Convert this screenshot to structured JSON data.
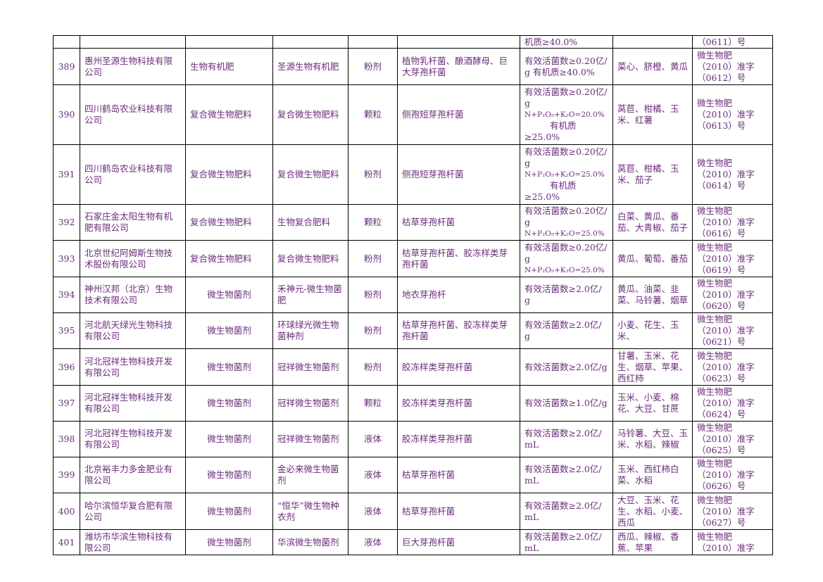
{
  "table": {
    "partial_row": {
      "indicator": "机质≥40.0%",
      "reg_no": "（0611）号"
    },
    "rows": [
      {
        "no": "389",
        "company": "惠州圣源生物科技有限公司",
        "type": "生物有机肥",
        "product": "圣源生物有机肥",
        "form": "粉剂",
        "strain": "植物乳杆菌、酿酒酵母、巨大芽孢杆菌",
        "indicator": [
          "有效活菌数≥0.20亿/g 有机质≥40.0%"
        ],
        "crops": "菜心、脐橙、黄瓜",
        "reg": [
          "微生物肥",
          "（2010）准字",
          "（0612）号"
        ]
      },
      {
        "no": "390",
        "company": "四川鹤岛农业科技有限公司",
        "type": "复合微生物肥料",
        "product": "复合微生物肥料",
        "form": "颗粒",
        "strain": "侧孢短芽孢杆菌",
        "indicator": [
          "有效活菌数≥0.20亿/g",
          "N+P₂O₅+K₂O=20.0%",
          "有机质",
          "≥25.0%"
        ],
        "crops": "莴苣、柑橘、玉米、红薯",
        "reg": [
          "微生物肥",
          "（2010）准字",
          "（0613）号"
        ]
      },
      {
        "no": "391",
        "company": "四川鹤岛农业科技有限公司",
        "type": "复合微生物肥料",
        "product": "复合微生物肥料",
        "form": "粉剂",
        "strain": "侧孢短芽孢杆菌",
        "indicator": [
          "有效活菌数≥0.20亿/g",
          "N+P₂O₅+K₂O=25.0%",
          "有机质",
          "≥25.0%"
        ],
        "crops": "莴苣、柑橘、玉米、茄子",
        "reg": [
          "微生物肥",
          "（2010）准字",
          "（0614）号"
        ]
      },
      {
        "no": "392",
        "company": "石家庄金太阳生物有机肥有限公司",
        "type": "复合微生物肥料",
        "product": "生物复合肥料",
        "form": "颗粒",
        "strain": "枯草芽孢杆菌",
        "indicator": [
          "有效活菌数≥0.20亿/g",
          "N+P₂O₅+K₂O=25.0%"
        ],
        "crops": "白菜、黄瓜、番茄、大青椒、茄子",
        "reg": [
          "微生物肥",
          "（2010）准字",
          "（0616）号"
        ]
      },
      {
        "no": "393",
        "company": "北京世纪阿姆斯生物技术股份有限公司",
        "type": "复合微生物肥料",
        "product": "复合微生物肥料",
        "form": "粉剂",
        "strain": "枯草芽孢杆菌、胶冻样类芽孢杆菌",
        "indicator": [
          "有效活菌数≥0.20亿/g",
          "N+P₂O₅+K₂O=25.0%"
        ],
        "crops": "黄瓜、葡萄、番茄",
        "reg": [
          "微生物肥",
          "（2010）准字",
          "（0619）号"
        ]
      },
      {
        "no": "394",
        "company": "神州汉邦（北京）生物技术有限公司",
        "type": "微生物菌剂",
        "product": "禾神元-微生物菌肥",
        "form": "粉剂",
        "strain": "地衣芽孢杆",
        "indicator": [
          "有效活菌数≥2.0亿/ g"
        ],
        "crops": "黄瓜、油菜、韭菜、马铃薯、烟草",
        "reg": [
          "微生物肥",
          "（2010）准字",
          "（0620）号"
        ]
      },
      {
        "no": "395",
        "company": "河北航天绿光生物科技有限公司",
        "type": "微生物菌剂",
        "product": "环球绿光微生物菌种剂",
        "form": "粉剂",
        "strain": "枯草芽孢杆菌、胶冻样类芽孢杆菌",
        "indicator": [
          "有效活菌数≥2.0亿/ g"
        ],
        "crops": "小麦、花生、玉米、",
        "reg": [
          "微生物肥",
          "（2010）准字",
          "（0621）号"
        ]
      },
      {
        "no": "396",
        "company": "河北冠祥生物科技开发有限公司",
        "type": "微生物菌剂",
        "product": "冠祥微生物菌剂",
        "form": "粉剂",
        "strain": "胶冻样类芽孢杆菌",
        "indicator": [
          "有效活菌数≥2.0亿/g"
        ],
        "crops": "甘薯、玉米、花生、烟草、苹果、西红柿",
        "reg": [
          "微生物肥",
          "（2010）准字",
          "（0623）号"
        ]
      },
      {
        "no": "397",
        "company": "河北冠祥生物科技开发有限公司",
        "type": "微生物菌剂",
        "product": "冠祥微生物菌剂",
        "form": "颗粒",
        "strain": "胶冻样类芽孢杆菌",
        "indicator": [
          "有效活菌数≥1.0亿/g"
        ],
        "crops": "玉米、小麦、棉花、大豆、甘蔗",
        "reg": [
          "微生物肥",
          "（2010）准字",
          "（0624）号"
        ]
      },
      {
        "no": "398",
        "company": "河北冠祥生物科技开发有限公司",
        "type": "微生物菌剂",
        "product": "冠祥微生物菌剂",
        "form": "液体",
        "strain": "胶冻样类芽孢杆菌",
        "indicator": [
          "有效活菌数≥2.0亿/mL"
        ],
        "crops": "马铃薯、大豆、玉米、水稻、辣椒",
        "reg": [
          "微生物肥",
          "（2010）准字",
          "（0625）号"
        ]
      },
      {
        "no": "399",
        "company": "北京裕丰力多金肥业有限公司",
        "type": "微生物菌剂",
        "product": "金必来微生物菌剂",
        "form": "液体",
        "strain": "枯草芽孢杆菌",
        "indicator": [
          "有效活菌数≥2.0亿/mL"
        ],
        "crops": "玉米、西红柿白菜、水稻",
        "reg": [
          "微生物肥",
          "（2010）准字",
          "（0626）号"
        ]
      },
      {
        "no": "400",
        "company": "哈尔滨恒华复合肥有限公司",
        "type": "微生物菌剂",
        "product": "“恒华”微生物种衣剂",
        "form": "液体",
        "strain": "枯草芽孢杆菌",
        "indicator": [
          "有效活菌数≥2.0亿/mL"
        ],
        "crops": "大豆、玉米、花生、水稻、小麦、西瓜",
        "reg": [
          "微生物肥",
          "（2010）准字",
          "（0627）号"
        ]
      },
      {
        "no": "401",
        "company": "潍坊市华滨生物科技有限公司",
        "type": "微生物菌剂",
        "product": "华滨微生物菌剂",
        "form": "液体",
        "strain": "巨大芽孢杆菌",
        "indicator": [
          "有效活菌数≥2.0亿/mL"
        ],
        "crops": "西瓜、辣椒、香蕉、苹果",
        "reg": [
          "微生物肥",
          "（2010）准字"
        ]
      }
    ]
  }
}
